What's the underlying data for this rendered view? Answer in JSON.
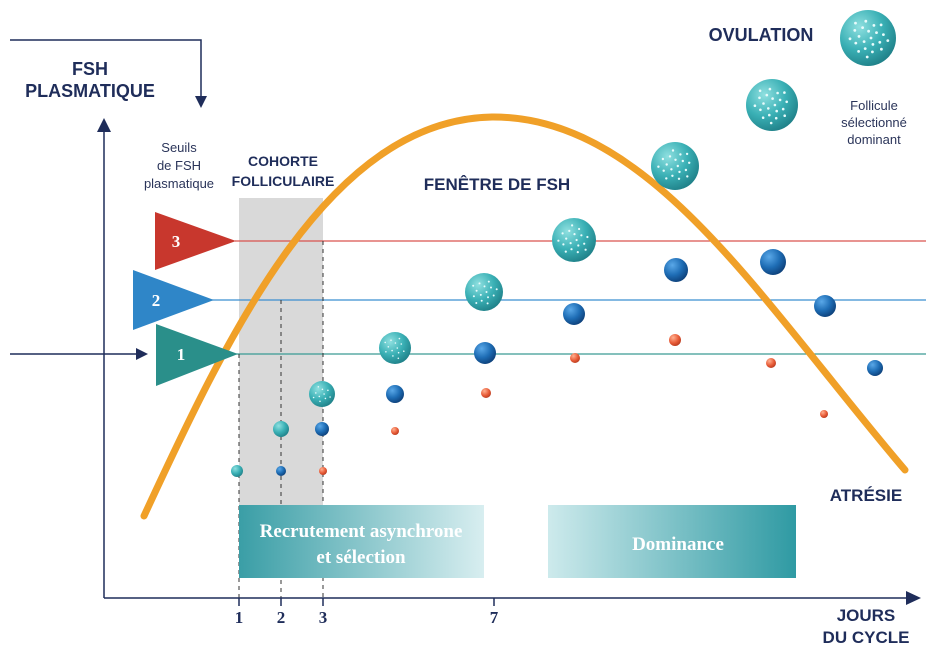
{
  "title": {
    "y_axis": [
      "FSH",
      "PLASMATIQUE"
    ],
    "x_axis": [
      "JOURS",
      "DU CYCLE"
    ]
  },
  "labels": {
    "seuils": [
      "Seuils",
      "de FSH",
      "plasmatique"
    ],
    "cohorte": [
      "COHORTE",
      "FOLLICULAIRE"
    ],
    "fenetre": "FENÊTRE DE FSH",
    "ovulation": "OVULATION",
    "follicule": [
      "Follicule",
      "sélectionné",
      "dominant"
    ],
    "atresie": "ATRÉSIE"
  },
  "thresholds": [
    {
      "label": "3",
      "color": "#c8372d"
    },
    {
      "label": "2",
      "color": "#2f86c8"
    },
    {
      "label": "1",
      "color": "#2a8f8a"
    }
  ],
  "x_ticks": [
    "1",
    "2",
    "3",
    "7"
  ],
  "phases": [
    {
      "label": [
        "Recrutement asynchrone",
        "et sélection"
      ]
    },
    {
      "label": [
        "Dominance"
      ]
    }
  ],
  "colors": {
    "axis": "#1f2d5a",
    "curve": "#f0a028",
    "cohort_band": "#d9d9d9",
    "follicle_dominant": "#3ab0b5",
    "follicle_blue": "#1e6db5",
    "follicle_red": "#e85c38",
    "line_red": "#d9534f",
    "line_blue": "#3b8fd0",
    "line_teal": "#3a9a95"
  },
  "icons": {
    "y_axis_arrow": "arrow-down-icon",
    "side_arrow": "arrow-right-icon"
  }
}
